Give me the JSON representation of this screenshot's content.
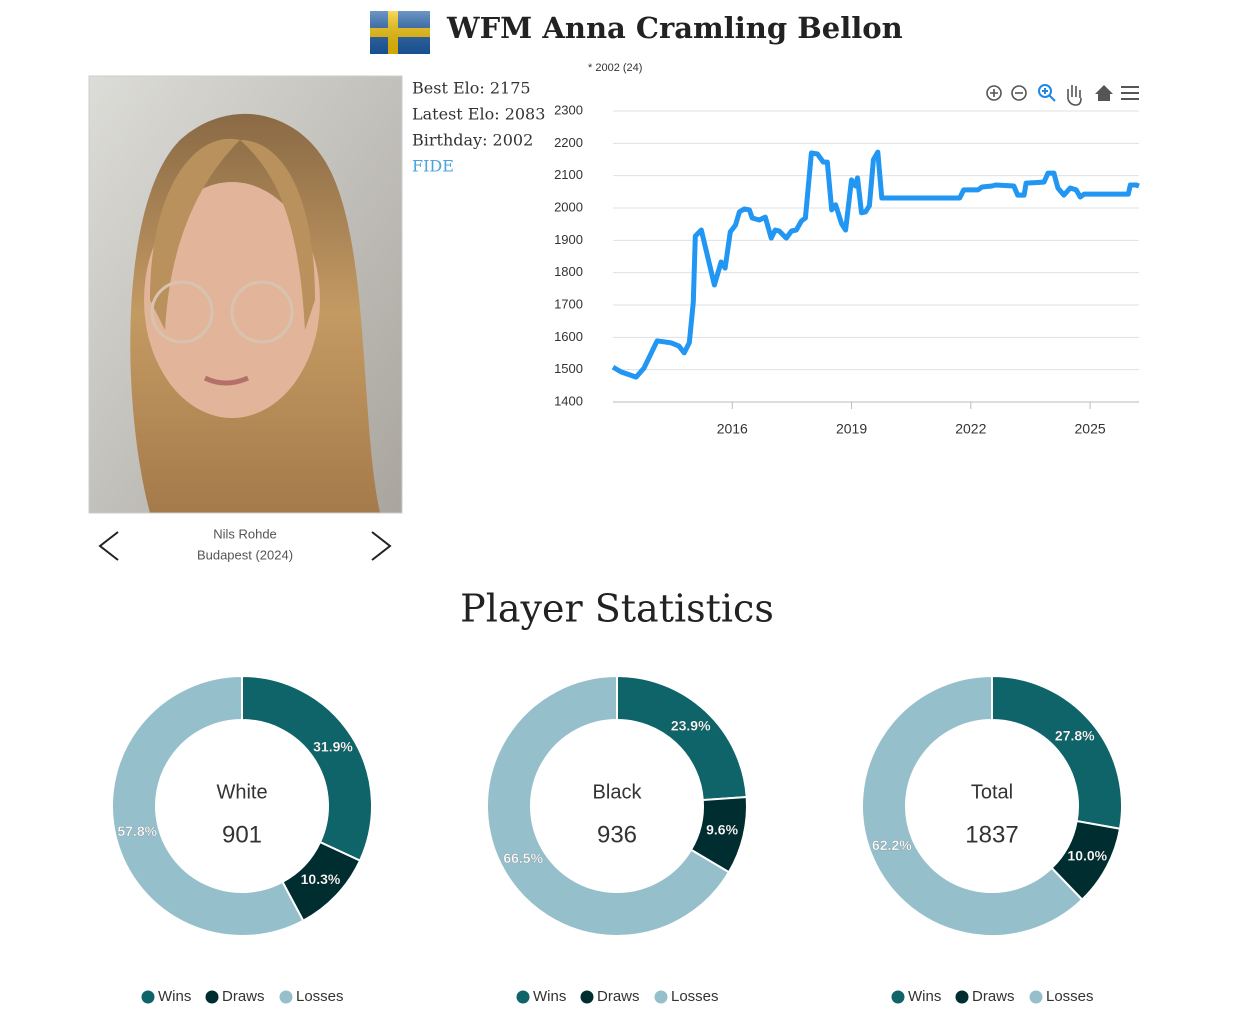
{
  "header": {
    "title": "WFM Anna Cramling Bellon"
  },
  "profile": {
    "best_elo": "Best Elo: 2175",
    "latest_elo": "Latest Elo: 2083",
    "birthday": "Birthday: 2002",
    "link": "FIDE",
    "photo_credit": "Nils Rohde",
    "photo_caption": "Budapest (2024)"
  },
  "section_title": "Player Statistics",
  "chart_data": [
    {
      "type": "line",
      "annotation": "* 2002 (24)",
      "color": "#2196f3",
      "x": [
        2013.0,
        2013.2,
        2013.58,
        2013.78,
        2014.11,
        2014.46,
        2014.66,
        2014.79,
        2014.92,
        2015.02,
        2015.07,
        2015.22,
        2015.55,
        2015.72,
        2015.82,
        2015.95,
        2016.08,
        2016.18,
        2016.3,
        2016.43,
        2016.5,
        2016.68,
        2016.83,
        2016.98,
        2017.08,
        2017.18,
        2017.36,
        2017.49,
        2017.61,
        2017.74,
        2017.84,
        2017.99,
        2018.14,
        2018.29,
        2018.39,
        2018.5,
        2018.6,
        2018.75,
        2018.85,
        2019.0,
        2019.1,
        2019.15,
        2019.25,
        2019.35,
        2019.45,
        2019.55,
        2019.66,
        2019.76,
        2021.72,
        2021.82,
        2022.18,
        2022.28,
        2022.53,
        2022.63,
        2023.08,
        2023.18,
        2023.34,
        2023.39,
        2023.84,
        2023.94,
        2024.09,
        2024.19,
        2024.34,
        2024.5,
        2024.65,
        2024.75,
        2024.85,
        2025.96,
        2026.01,
        2026.16,
        2026.23
      ],
      "values": [
        1508,
        1493,
        1477,
        1505,
        1589,
        1583,
        1573,
        1552,
        1583,
        1709,
        1913,
        1932,
        1762,
        1833,
        1814,
        1926,
        1947,
        1988,
        1997,
        1994,
        1969,
        1963,
        1972,
        1907,
        1932,
        1929,
        1907,
        1929,
        1932,
        1960,
        1969,
        2170,
        2167,
        2142,
        2142,
        1994,
        2010,
        1951,
        1932,
        2087,
        2068,
        2093,
        1985,
        1988,
        2007,
        2149,
        2173,
        2031,
        2031,
        2056,
        2056,
        2065,
        2068,
        2071,
        2068,
        2040,
        2040,
        2077,
        2080,
        2108,
        2108,
        2062,
        2040,
        2062,
        2056,
        2034,
        2043,
        2043,
        2071,
        2071,
        2068
      ],
      "xlim": [
        2013.0,
        2026.23
      ],
      "xticks": [
        2016,
        2019,
        2022,
        2025
      ],
      "ylim": [
        1400,
        2300
      ],
      "yticks": [
        1400,
        1500,
        1600,
        1700,
        1800,
        1900,
        2000,
        2100,
        2200,
        2300
      ],
      "grid": true
    },
    {
      "type": "donut",
      "title": "White",
      "total": 901,
      "categories": [
        "Wins",
        "Draws",
        "Losses"
      ],
      "values": [
        31.9,
        10.3,
        57.8
      ],
      "value_labels": [
        "31.9%",
        "10.3%",
        "57.8%"
      ],
      "colors": [
        "#0e6468",
        "#002e30",
        "#96bfcc"
      ]
    },
    {
      "type": "donut",
      "title": "Black",
      "total": 936,
      "categories": [
        "Wins",
        "Draws",
        "Losses"
      ],
      "values": [
        23.9,
        9.6,
        66.5
      ],
      "value_labels": [
        "23.9%",
        "9.6%",
        "66.5%"
      ],
      "colors": [
        "#0e6468",
        "#002e30",
        "#96bfcc"
      ]
    },
    {
      "type": "donut",
      "title": "Total",
      "total": 1837,
      "categories": [
        "Wins",
        "Draws",
        "Losses"
      ],
      "values": [
        27.8,
        10.0,
        62.2
      ],
      "value_labels": [
        "27.8%",
        "10.0%",
        "62.2%"
      ],
      "colors": [
        "#0e6468",
        "#002e30",
        "#96bfcc"
      ]
    }
  ]
}
